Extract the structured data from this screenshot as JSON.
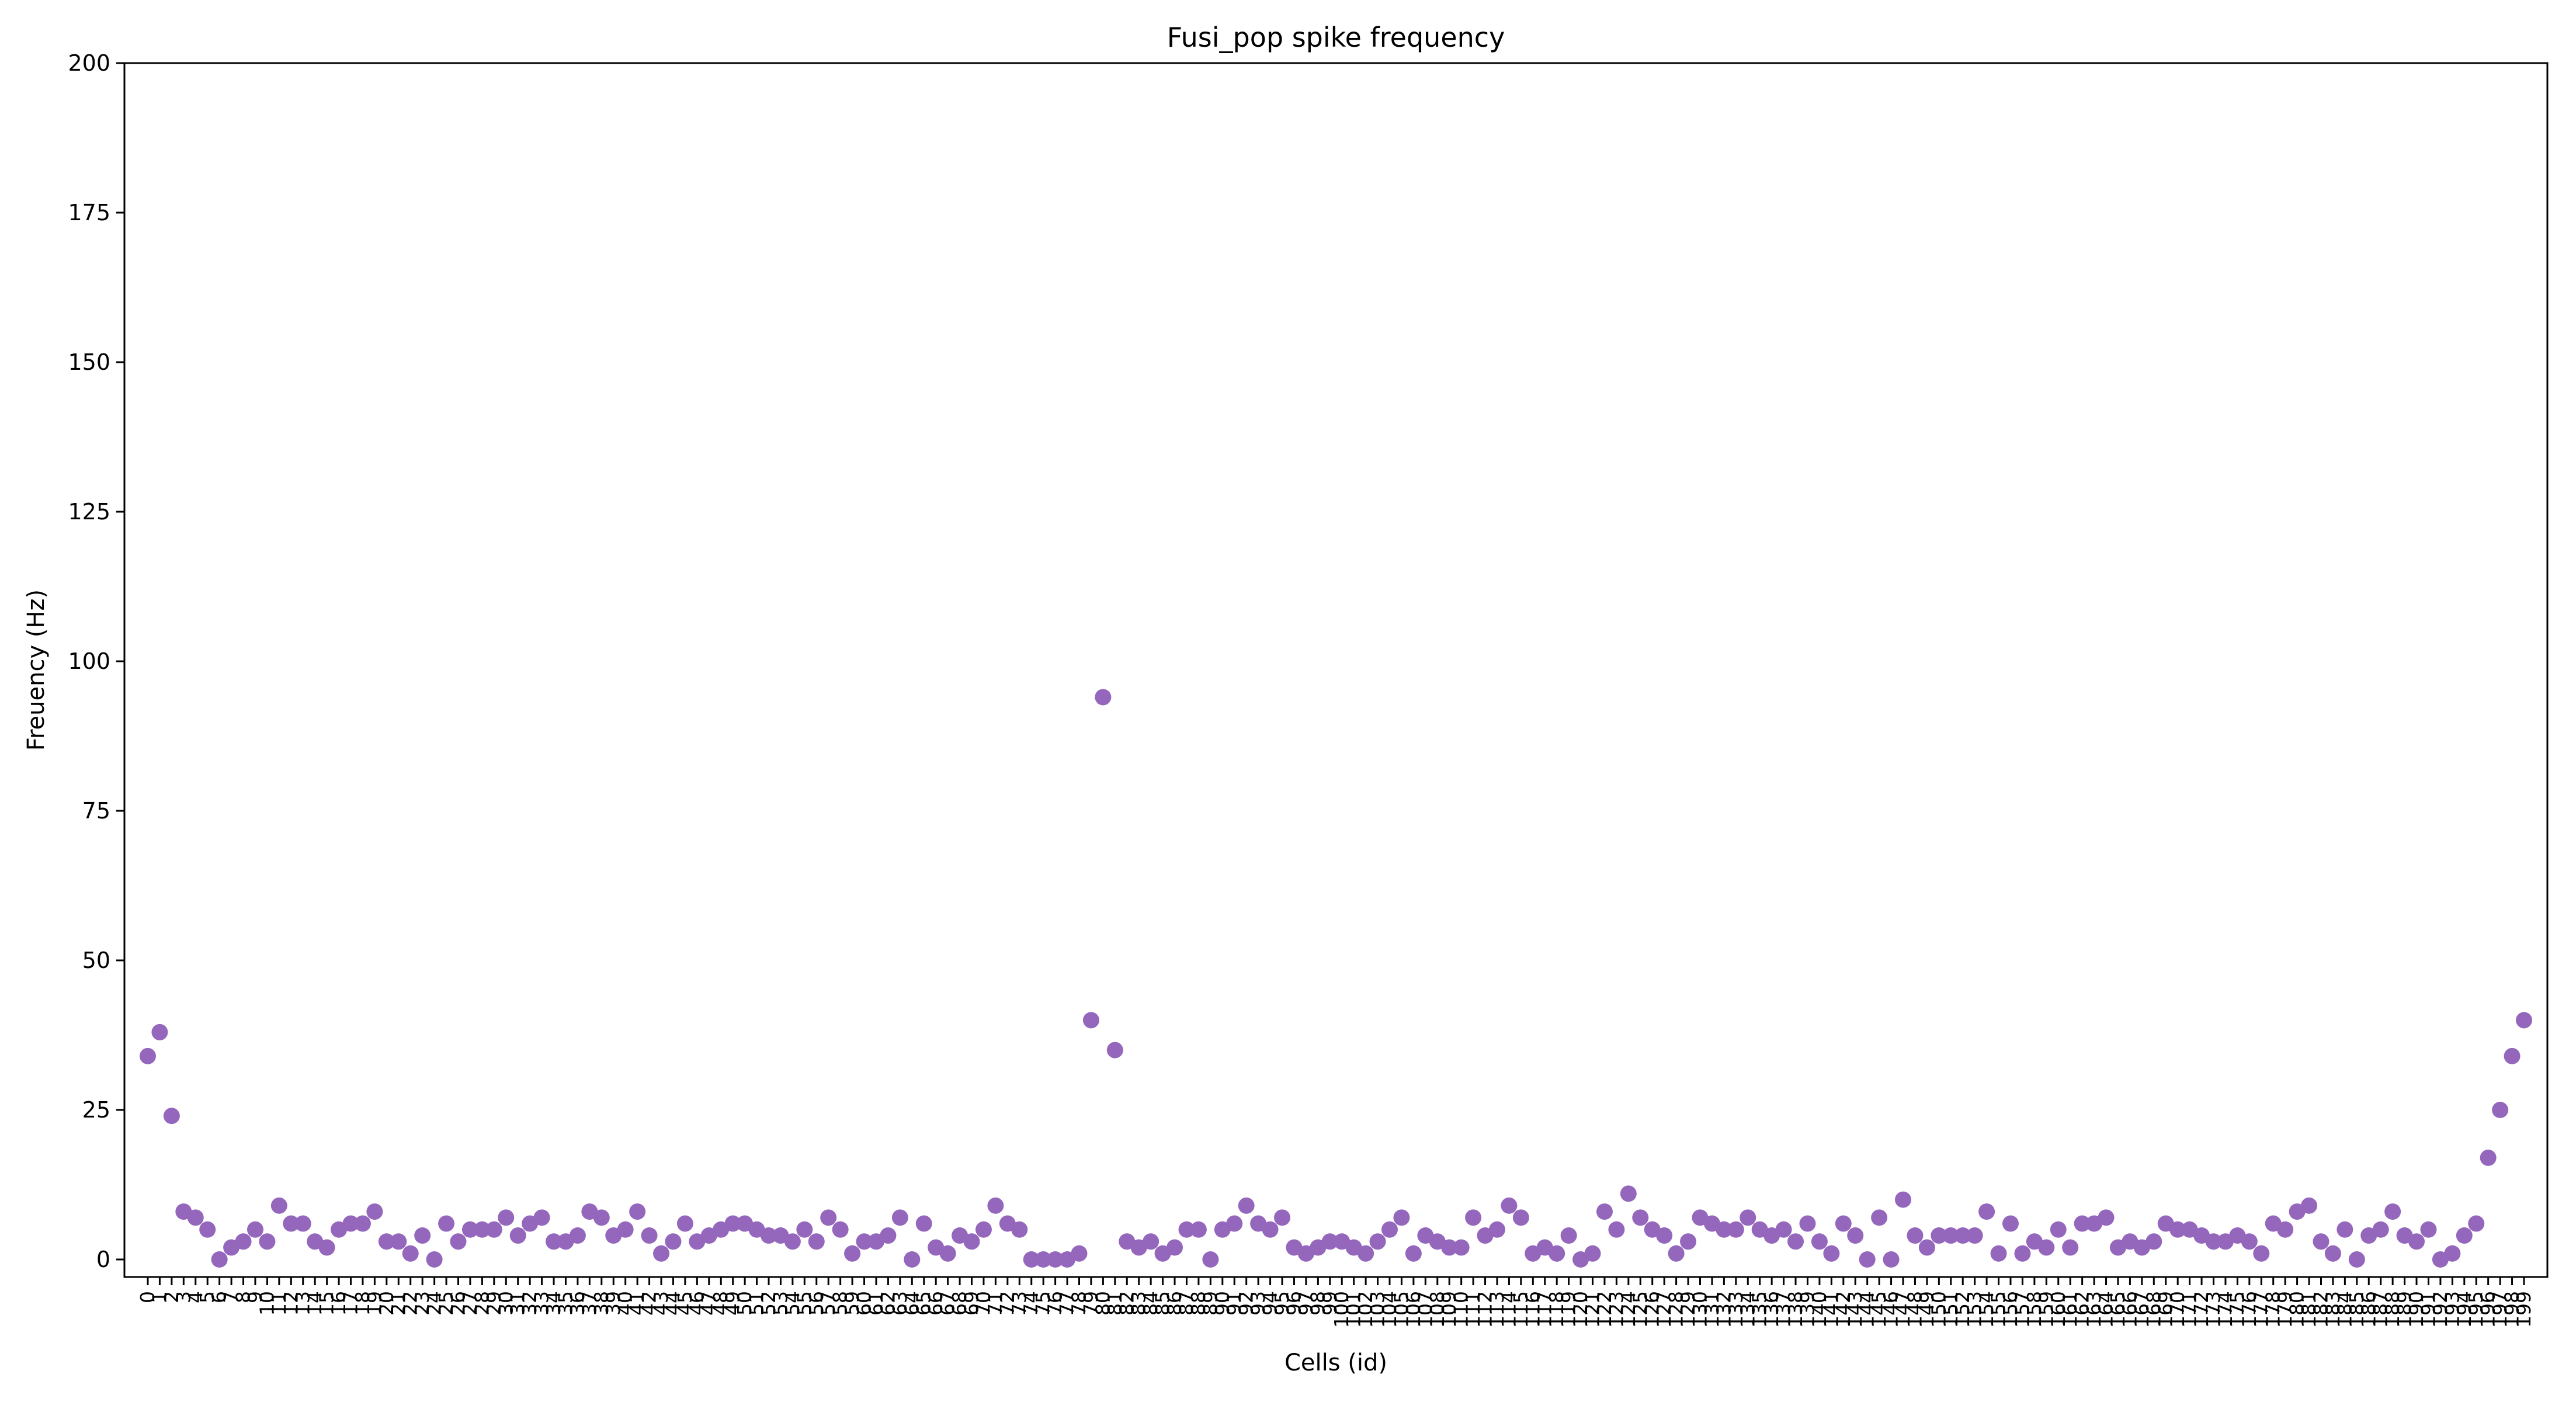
{
  "chart_data": {
    "type": "scatter",
    "title": "Fusi_pop spike frequency",
    "xlabel": "Cells (id)",
    "ylabel": "Freuency (Hz)",
    "ylim": [
      0,
      200
    ],
    "yticks": [
      0,
      25,
      50,
      75,
      100,
      125,
      150,
      175,
      200
    ],
    "grid": false,
    "marker_color": "#9467bd",
    "series": [
      {
        "x": [
          0,
          1,
          2,
          3,
          4,
          5,
          6,
          7,
          8,
          9,
          10,
          11,
          12,
          13,
          14,
          15,
          16,
          17,
          18,
          19,
          20,
          21,
          22,
          23,
          24,
          25,
          26,
          27,
          28,
          29,
          30,
          31,
          32,
          33,
          34,
          35,
          36,
          37,
          38,
          39,
          40,
          41,
          42,
          43,
          44,
          45,
          46,
          47,
          48,
          49,
          50,
          51,
          52,
          53,
          54,
          55,
          56,
          57,
          58,
          59,
          60,
          61,
          62,
          63,
          64,
          65,
          66,
          67,
          68,
          69,
          70,
          71,
          72,
          73,
          74,
          75,
          76,
          77,
          78,
          79,
          80,
          81,
          82,
          83,
          84,
          85,
          86,
          87,
          88,
          89,
          90,
          91,
          92,
          93,
          94,
          95,
          96,
          97,
          98,
          99,
          100,
          101,
          102,
          103,
          104,
          105,
          106,
          107,
          108,
          109,
          110,
          111,
          112,
          113,
          114,
          115,
          116,
          117,
          118,
          119,
          120,
          121,
          122,
          123,
          124,
          125,
          126,
          127,
          128,
          129,
          130,
          131,
          132,
          133,
          134,
          135,
          136,
          137,
          138,
          139,
          140,
          141,
          142,
          143,
          144,
          145,
          146,
          147,
          148,
          149,
          150,
          151,
          152,
          153,
          154,
          155,
          156,
          157,
          158,
          159,
          160,
          161,
          162,
          163,
          164,
          165,
          166,
          167,
          168,
          169,
          170,
          171,
          172,
          173,
          174,
          175,
          176,
          177,
          178,
          179,
          180,
          181,
          182,
          183,
          184,
          185,
          186,
          187,
          188,
          189,
          190,
          191,
          192,
          193,
          194,
          195,
          196,
          197,
          198,
          199
        ],
        "y": [
          34,
          38,
          24,
          8,
          7,
          5,
          0,
          2,
          3,
          5,
          3,
          9,
          6,
          6,
          3,
          2,
          5,
          6,
          6,
          8,
          3,
          3,
          1,
          4,
          0,
          6,
          3,
          5,
          5,
          5,
          7,
          4,
          6,
          7,
          3,
          3,
          4,
          8,
          7,
          4,
          5,
          8,
          4,
          1,
          3,
          6,
          3,
          4,
          5,
          6,
          6,
          5,
          4,
          4,
          3,
          5,
          3,
          7,
          5,
          1,
          3,
          3,
          4,
          7,
          0,
          6,
          2,
          1,
          4,
          3,
          5,
          9,
          6,
          5,
          0,
          0,
          0,
          0,
          1,
          40,
          94,
          35,
          3,
          2,
          3,
          1,
          2,
          5,
          5,
          0,
          5,
          6,
          9,
          6,
          5,
          7,
          2,
          1,
          2,
          3,
          3,
          2,
          1,
          3,
          5,
          7,
          1,
          4,
          3,
          2,
          2,
          7,
          4,
          5,
          9,
          7,
          1,
          2,
          1,
          4,
          0,
          1,
          8,
          5,
          11,
          7,
          5,
          4,
          1,
          3,
          7,
          6,
          5,
          5,
          7,
          5,
          4,
          5,
          3,
          6,
          3,
          1,
          6,
          4,
          0,
          7,
          0,
          10,
          4,
          2,
          4,
          4,
          4,
          4,
          8,
          1,
          6,
          1,
          3,
          2,
          5,
          2,
          6,
          6,
          7,
          2,
          3,
          2,
          3,
          6,
          5,
          5,
          4,
          3,
          3,
          4,
          3,
          1,
          6,
          5,
          8,
          9,
          3,
          1,
          5,
          0,
          4,
          5,
          8,
          4,
          3,
          5,
          0,
          1,
          4,
          6,
          17,
          25,
          34,
          40
        ]
      }
    ]
  }
}
